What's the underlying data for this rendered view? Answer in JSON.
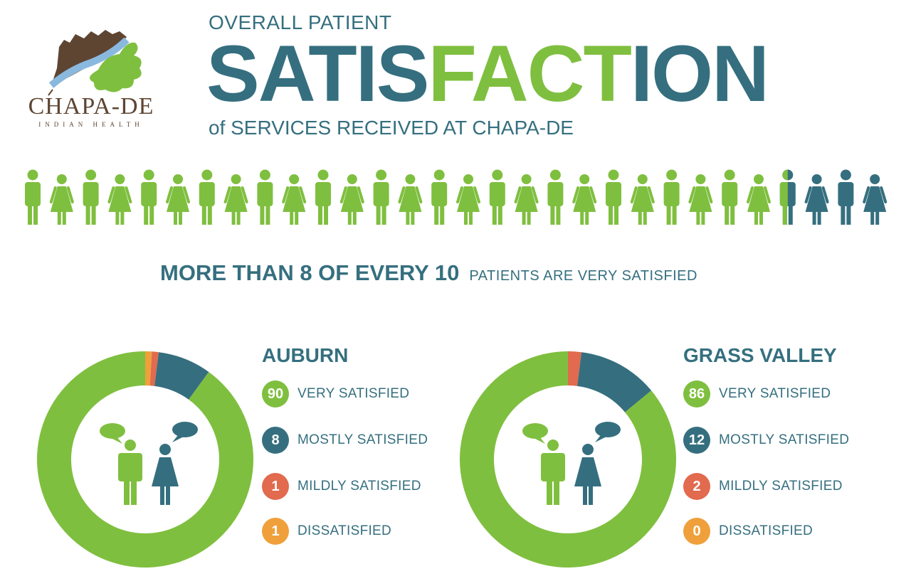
{
  "colors": {
    "teal": "#356f7f",
    "green": "#7fbf3f",
    "red": "#e26a4e",
    "orange": "#efa03b"
  },
  "logo": {
    "name": "CHAPA-DE",
    "subtitle": "INDIAN HEALTH",
    "icon": "oak-leaf-mountain-logo"
  },
  "header": {
    "pre_title": "OVERALL PATIENT",
    "title_part1": "SATIS",
    "title_part2": "FACT",
    "title_part3": "ION",
    "post_title": "of SERVICES RECEIVED AT CHAPA-DE"
  },
  "people_row": {
    "total_figures": 30,
    "satisfied_figures": 26.5,
    "pattern": "alternating-male-female"
  },
  "tagline": {
    "strong": "MORE THAN 8 OF EVERY 10",
    "light": "PATIENTS ARE VERY SATISFIED"
  },
  "chart_data": [
    {
      "type": "pie",
      "title": "AUBURN",
      "categories": [
        "VERY SATISFIED",
        "MOSTLY SATISFIED",
        "MILDLY SATISFIED",
        "DISSATISFIED"
      ],
      "values": [
        90,
        8,
        1,
        1
      ],
      "colors": [
        "#7fbf3f",
        "#356f7f",
        "#e26a4e",
        "#efa03b"
      ]
    },
    {
      "type": "pie",
      "title": "GRASS VALLEY",
      "categories": [
        "VERY SATISFIED",
        "MOSTLY SATISFIED",
        "MILDLY SATISFIED",
        "DISSATISFIED"
      ],
      "values": [
        86,
        12,
        2,
        0
      ],
      "colors": [
        "#7fbf3f",
        "#356f7f",
        "#e26a4e",
        "#efa03b"
      ]
    }
  ]
}
